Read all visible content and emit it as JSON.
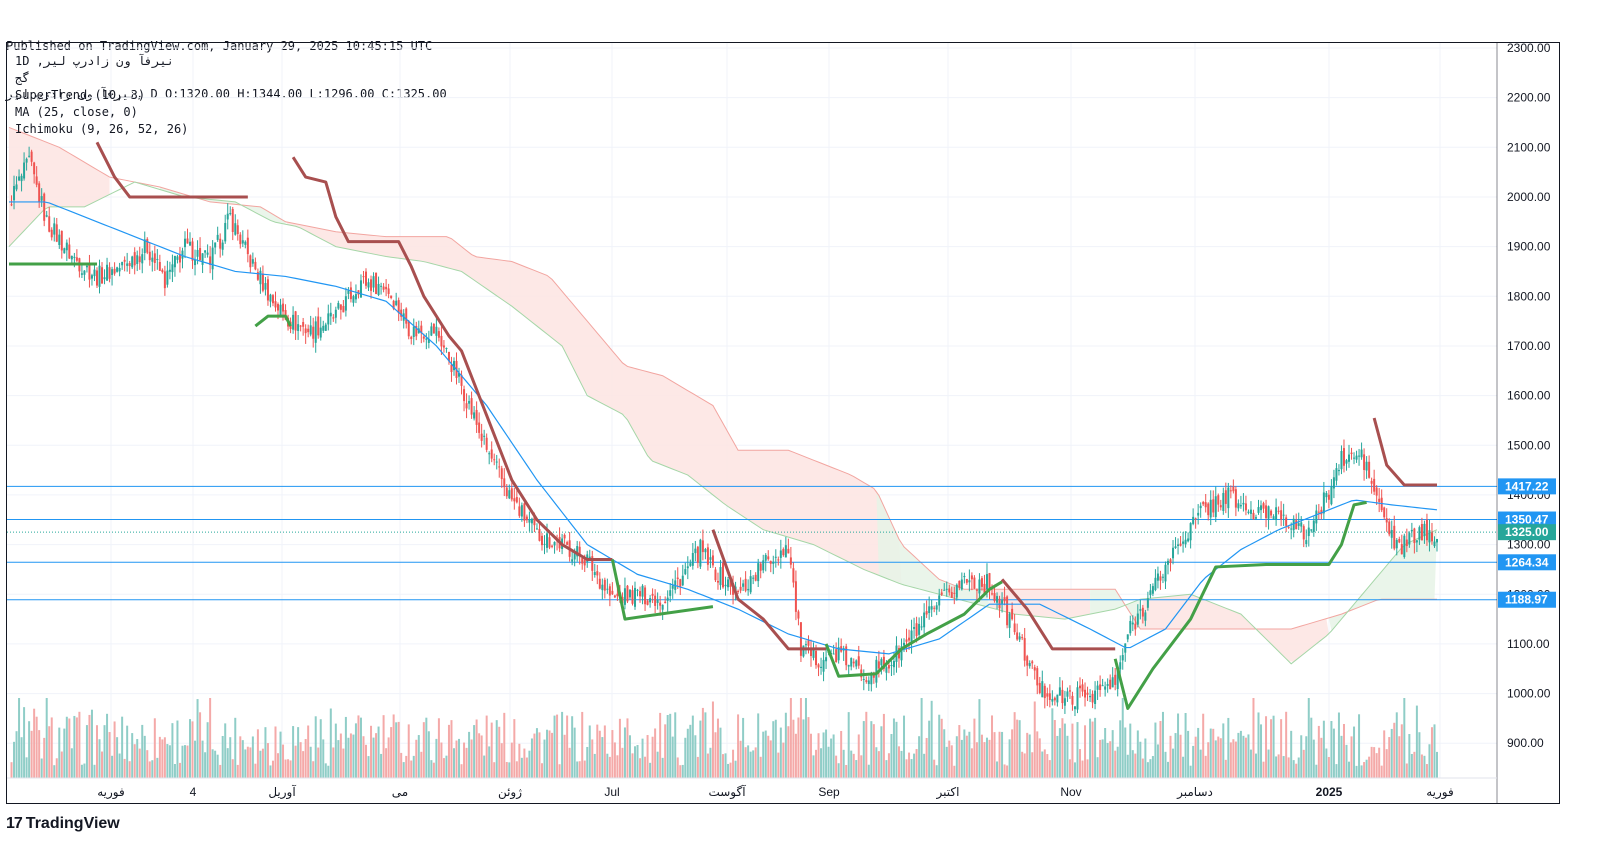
{
  "header": {
    "published": "Published on TradingView.com, January 29, 2025 10:45:15 UTC",
    "ohlc": "نیرفآ ون زادرپ لیر, D O:1320.00 H:1344.00 L:1296.00 C:1325.00"
  },
  "legend": {
    "symbol": "1D ,نیرفآ ون زادرپ لیر",
    "exchange": "گج",
    "indicators": [
      "SuperTrend (10, 3)",
      "MA (25, close, 0)",
      "Ichimoku (9, 26, 52, 26)"
    ]
  },
  "brand": {
    "name": "TradingView",
    "logo_text": "17"
  },
  "colors": {
    "up": "#26a69a",
    "down": "#ef5350",
    "up_vol": "#8fcdc7",
    "down_vol": "#f4a9a8",
    "supertrend_up": "#43a047",
    "supertrend_down": "#a84f4f",
    "ma": "#2196f3",
    "cloud_red": "#fde4e2",
    "cloud_green": "#e6f3e6",
    "level_line": "#2196f3",
    "price_badge": "#26a69a"
  },
  "chart_data": {
    "type": "candlestick",
    "title": "نیرفآ ون زادرپ لیر, 1D",
    "ylim": [
      830,
      2310
    ],
    "y_ticks": [
      "2300.00",
      "2200.00",
      "2100.00",
      "2000.00",
      "1900.00",
      "1800.00",
      "1700.00",
      "1600.00",
      "1500.00",
      "1400.00",
      "1300.00",
      "1200.00",
      "1100.00",
      "1000.00",
      "900.00"
    ],
    "x_ticks": [
      "فوریه",
      "4",
      "آوریل",
      "می",
      "ژوئن",
      "Jul",
      "آگوست",
      "Sep",
      "اکتبر",
      "Nov",
      "دسامبر",
      "2025",
      "فوریه"
    ],
    "levels": [
      {
        "label": "1417.22",
        "value": 1417.22
      },
      {
        "label": "1350.47",
        "value": 1350.47
      },
      {
        "label": "1264.34",
        "value": 1264.34
      },
      {
        "label": "1188.97",
        "value": 1188.97
      }
    ],
    "last_price": {
      "label": "1325.00",
      "value": 1325.0
    },
    "close_path": [
      [
        0,
        1990
      ],
      [
        8,
        2070
      ],
      [
        15,
        1950
      ],
      [
        25,
        1880
      ],
      [
        35,
        1840
      ],
      [
        45,
        1860
      ],
      [
        55,
        1900
      ],
      [
        62,
        1830
      ],
      [
        70,
        1900
      ],
      [
        80,
        1870
      ],
      [
        88,
        1960
      ],
      [
        95,
        1880
      ],
      [
        105,
        1790
      ],
      [
        112,
        1750
      ],
      [
        120,
        1730
      ],
      [
        130,
        1760
      ],
      [
        140,
        1830
      ],
      [
        150,
        1820
      ],
      [
        160,
        1730
      ],
      [
        170,
        1730
      ],
      [
        180,
        1620
      ],
      [
        190,
        1490
      ],
      [
        200,
        1390
      ],
      [
        210,
        1320
      ],
      [
        220,
        1300
      ],
      [
        230,
        1270
      ],
      [
        240,
        1190
      ],
      [
        250,
        1200
      ],
      [
        260,
        1190
      ],
      [
        270,
        1250
      ],
      [
        275,
        1290
      ],
      [
        280,
        1250
      ],
      [
        290,
        1200
      ],
      [
        300,
        1260
      ],
      [
        310,
        1300
      ],
      [
        315,
        1090
      ],
      [
        320,
        1070
      ],
      [
        330,
        1080
      ],
      [
        340,
        1040
      ],
      [
        350,
        1060
      ],
      [
        360,
        1120
      ],
      [
        370,
        1180
      ],
      [
        380,
        1230
      ],
      [
        390,
        1220
      ],
      [
        400,
        1130
      ],
      [
        410,
        1010
      ],
      [
        420,
        990
      ],
      [
        430,
        1000
      ],
      [
        440,
        1020
      ],
      [
        445,
        1120
      ],
      [
        455,
        1210
      ],
      [
        465,
        1300
      ],
      [
        475,
        1370
      ],
      [
        485,
        1400
      ],
      [
        495,
        1360
      ],
      [
        505,
        1370
      ],
      [
        515,
        1320
      ],
      [
        520,
        1350
      ],
      [
        530,
        1470
      ],
      [
        538,
        1480
      ],
      [
        545,
        1380
      ],
      [
        552,
        1290
      ],
      [
        560,
        1320
      ],
      [
        568,
        1325
      ]
    ],
    "supertrend": [
      {
        "trend": "up",
        "points": [
          [
            0,
            1865
          ],
          [
            35,
            1865
          ]
        ]
      },
      {
        "trend": "down",
        "points": [
          [
            35,
            2110
          ],
          [
            42,
            2040
          ],
          [
            48,
            2000
          ],
          [
            95,
            2000
          ]
        ]
      },
      {
        "trend": "up",
        "points": [
          [
            98,
            1740
          ],
          [
            103,
            1760
          ],
          [
            110,
            1760
          ],
          [
            112,
            1740
          ]
        ]
      },
      {
        "trend": "down",
        "points": [
          [
            113,
            2080
          ],
          [
            118,
            2040
          ],
          [
            126,
            2030
          ],
          [
            130,
            1960
          ],
          [
            135,
            1910
          ],
          [
            155,
            1910
          ],
          [
            160,
            1860
          ],
          [
            165,
            1800
          ],
          [
            175,
            1720
          ],
          [
            180,
            1690
          ],
          [
            190,
            1560
          ],
          [
            200,
            1430
          ],
          [
            210,
            1350
          ],
          [
            220,
            1300
          ],
          [
            230,
            1270
          ],
          [
            240,
            1270
          ]
        ]
      },
      {
        "trend": "up",
        "points": [
          [
            240,
            1270
          ],
          [
            245,
            1150
          ],
          [
            280,
            1175
          ]
        ]
      },
      {
        "trend": "down",
        "points": [
          [
            280,
            1330
          ],
          [
            290,
            1190
          ],
          [
            300,
            1150
          ],
          [
            310,
            1090
          ],
          [
            325,
            1090
          ]
        ]
      },
      {
        "trend": "up",
        "points": [
          [
            325,
            1100
          ],
          [
            330,
            1035
          ],
          [
            345,
            1040
          ],
          [
            355,
            1090
          ],
          [
            365,
            1120
          ],
          [
            380,
            1160
          ],
          [
            390,
            1210
          ],
          [
            395,
            1225
          ]
        ]
      },
      {
        "trend": "down",
        "points": [
          [
            395,
            1230
          ],
          [
            405,
            1170
          ],
          [
            415,
            1090
          ],
          [
            440,
            1090
          ]
        ]
      },
      {
        "trend": "up",
        "points": [
          [
            440,
            1070
          ],
          [
            445,
            970
          ],
          [
            455,
            1050
          ],
          [
            470,
            1150
          ],
          [
            480,
            1255
          ],
          [
            500,
            1260
          ],
          [
            525,
            1260
          ],
          [
            530,
            1300
          ],
          [
            535,
            1380
          ],
          [
            540,
            1385
          ]
        ]
      },
      {
        "trend": "down",
        "points": [
          [
            543,
            1555
          ],
          [
            548,
            1460
          ],
          [
            555,
            1420
          ],
          [
            568,
            1420
          ]
        ]
      }
    ],
    "ma_path": [
      [
        0,
        1990
      ],
      [
        15,
        1990
      ],
      [
        30,
        1960
      ],
      [
        50,
        1920
      ],
      [
        70,
        1880
      ],
      [
        90,
        1850
      ],
      [
        110,
        1840
      ],
      [
        130,
        1820
      ],
      [
        150,
        1790
      ],
      [
        170,
        1700
      ],
      [
        190,
        1580
      ],
      [
        210,
        1430
      ],
      [
        230,
        1300
      ],
      [
        250,
        1240
      ],
      [
        270,
        1210
      ],
      [
        290,
        1170
      ],
      [
        310,
        1120
      ],
      [
        330,
        1090
      ],
      [
        350,
        1080
      ],
      [
        370,
        1110
      ],
      [
        390,
        1180
      ],
      [
        410,
        1180
      ],
      [
        430,
        1130
      ],
      [
        445,
        1090
      ],
      [
        460,
        1130
      ],
      [
        475,
        1230
      ],
      [
        490,
        1290
      ],
      [
        505,
        1330
      ],
      [
        520,
        1360
      ],
      [
        535,
        1390
      ],
      [
        550,
        1380
      ],
      [
        568,
        1370
      ]
    ],
    "cloud_upper": [
      [
        0,
        2140
      ],
      [
        20,
        2100
      ],
      [
        40,
        2040
      ],
      [
        60,
        2020
      ],
      [
        80,
        1990
      ],
      [
        100,
        1980
      ],
      [
        110,
        1950
      ],
      [
        130,
        1930
      ],
      [
        150,
        1920
      ],
      [
        175,
        1920
      ],
      [
        185,
        1880
      ],
      [
        200,
        1870
      ],
      [
        215,
        1840
      ],
      [
        230,
        1750
      ],
      [
        245,
        1660
      ],
      [
        260,
        1640
      ],
      [
        280,
        1580
      ],
      [
        290,
        1490
      ],
      [
        310,
        1490
      ],
      [
        335,
        1440
      ],
      [
        345,
        1410
      ],
      [
        355,
        1300
      ],
      [
        370,
        1230
      ],
      [
        380,
        1210
      ],
      [
        390,
        1210
      ],
      [
        405,
        1210
      ],
      [
        420,
        1210
      ],
      [
        440,
        1210
      ],
      [
        450,
        1130
      ],
      [
        470,
        1130
      ],
      [
        490,
        1130
      ],
      [
        510,
        1130
      ],
      [
        530,
        1160
      ],
      [
        545,
        1190
      ],
      [
        568,
        1190
      ]
    ],
    "cloud_lower": [
      [
        0,
        1900
      ],
      [
        15,
        1980
      ],
      [
        30,
        1980
      ],
      [
        50,
        2030
      ],
      [
        70,
        2000
      ],
      [
        90,
        1990
      ],
      [
        105,
        1950
      ],
      [
        115,
        1940
      ],
      [
        130,
        1900
      ],
      [
        150,
        1880
      ],
      [
        165,
        1870
      ],
      [
        180,
        1850
      ],
      [
        200,
        1780
      ],
      [
        220,
        1700
      ],
      [
        230,
        1600
      ],
      [
        245,
        1560
      ],
      [
        255,
        1470
      ],
      [
        270,
        1440
      ],
      [
        285,
        1380
      ],
      [
        300,
        1330
      ],
      [
        320,
        1300
      ],
      [
        340,
        1250
      ],
      [
        355,
        1220
      ],
      [
        370,
        1200
      ],
      [
        385,
        1180
      ],
      [
        400,
        1160
      ],
      [
        420,
        1150
      ],
      [
        440,
        1170
      ],
      [
        450,
        1190
      ],
      [
        470,
        1200
      ],
      [
        490,
        1160
      ],
      [
        510,
        1060
      ],
      [
        525,
        1120
      ],
      [
        535,
        1180
      ],
      [
        545,
        1240
      ],
      [
        555,
        1300
      ],
      [
        568,
        1330
      ]
    ],
    "cloud_bands": [
      {
        "color": "red",
        "from": 0,
        "to": 40
      },
      {
        "color": "green",
        "from": 60,
        "to": 110
      },
      {
        "color": "red",
        "from": 110,
        "to": 355
      },
      {
        "color": "green",
        "from": 345,
        "to": 390
      },
      {
        "color": "red",
        "from": 390,
        "to": 430
      },
      {
        "color": "green",
        "from": 430,
        "to": 450
      },
      {
        "color": "red",
        "from": 450,
        "to": 525
      },
      {
        "color": "green",
        "from": 525,
        "to": 568
      }
    ],
    "volume_max": 1000
  }
}
